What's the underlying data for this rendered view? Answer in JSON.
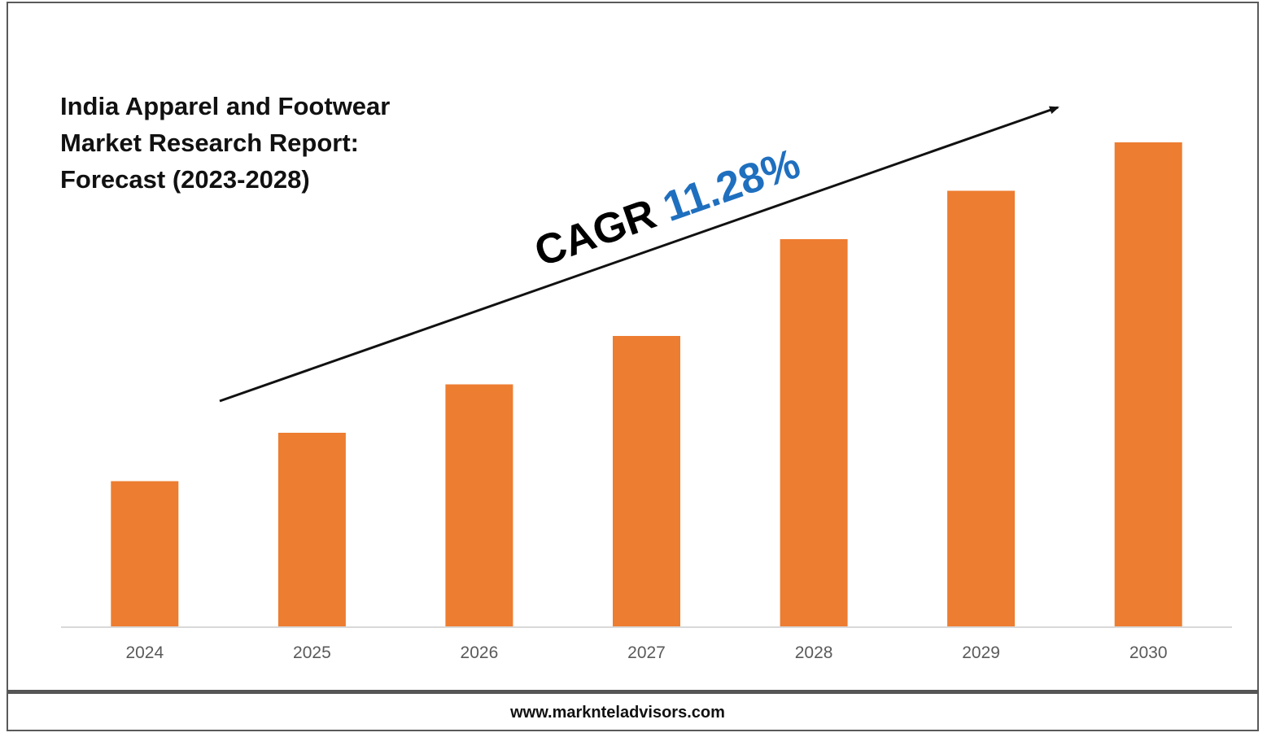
{
  "chart_data": {
    "type": "bar",
    "title_lines": [
      "India Apparel and Footwear",
      "Market Research Report:",
      "Forecast (2023-2028)"
    ],
    "categories": [
      "2024",
      "2025",
      "2026",
      "2027",
      "2028",
      "2029",
      "2030"
    ],
    "values": [
      30,
      40,
      50,
      60,
      80,
      90,
      100
    ],
    "ylim": [
      0,
      100
    ],
    "grid": false,
    "legend": "none",
    "bar_color": "#ED7D31",
    "annotation": {
      "prefix": "CAGR",
      "value": "11.28%",
      "prefix_color": "#000000",
      "value_color": "#1F6FBF"
    }
  },
  "footer": {
    "website": "www.marknteladvisors.com"
  }
}
